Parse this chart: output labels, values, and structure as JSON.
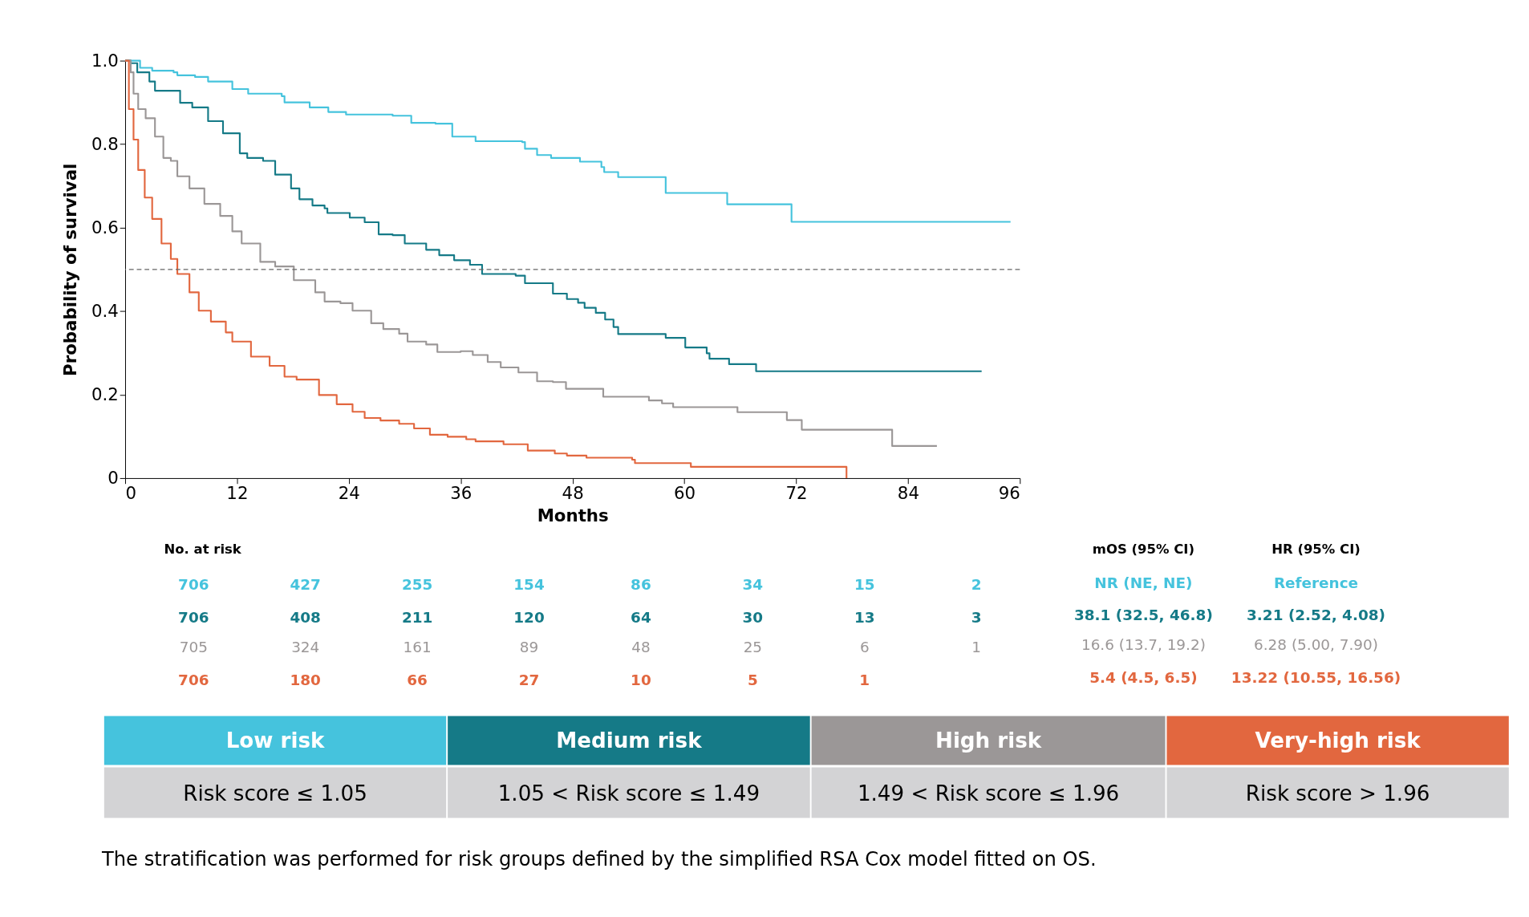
{
  "chart_data": {
    "type": "step",
    "xlabel": "Months",
    "ylabel": "Probability of survival",
    "xlim": [
      0,
      96
    ],
    "xticks": [
      0,
      12,
      24,
      36,
      48,
      60,
      72,
      84,
      96
    ],
    "ylim": [
      0,
      1
    ],
    "yticks": [
      0,
      0.2,
      0.4,
      0.6,
      0.8,
      {
        "value": 1,
        "label": "1.0"
      }
    ],
    "grid": false,
    "legend": "bottom",
    "marker": "none",
    "line_style": "solid",
    "ref_lines": [
      {
        "axis": "y",
        "value": 0.5,
        "color": "#666666",
        "line_style": "dashed"
      }
    ],
    "series": [
      {
        "name": "Low risk",
        "color": "#45c3dd",
        "x": [
          0,
          1.6,
          2.9,
          5.2,
          5.6,
          7.5,
          8.9,
          10.5,
          11.5,
          13.2,
          16.8,
          17.1,
          19.8,
          21.8,
          23.7,
          28.7,
          30.7,
          33.3,
          35.1,
          37.6,
          42.6,
          42.9,
          44.2,
          45.7,
          48.8,
          51.1,
          51.4,
          52.9,
          58.0,
          64.6,
          71.5,
          95.0
        ],
        "values": [
          1,
          0.983,
          0.976,
          0.972,
          0.965,
          0.961,
          0.95,
          0.95,
          0.932,
          0.921,
          0.915,
          0.9,
          0.888,
          0.877,
          0.871,
          0.868,
          0.851,
          0.849,
          0.818,
          0.807,
          0.805,
          0.789,
          0.774,
          0.767,
          0.758,
          0.745,
          0.733,
          0.721,
          0.683,
          0.656,
          0.614,
          0.614
        ]
      },
      {
        "name": "Medium risk",
        "color": "#157a87",
        "x": [
          0,
          0.6,
          1.3,
          2.6,
          3.2,
          5.9,
          7.2,
          8.9,
          10.5,
          12.3,
          13.1,
          14.8,
          16.1,
          17.8,
          18.7,
          20.1,
          21.4,
          21.7,
          24.1,
          25.7,
          27.2,
          28.7,
          30.0,
          32.3,
          33.7,
          35.3,
          37.0,
          38.3,
          41.9,
          42.9,
          45.9,
          47.4,
          48.6,
          49.3,
          50.5,
          51.5,
          52.4,
          52.9,
          58.0,
          60.1,
          62.4,
          62.7,
          64.8,
          67.7,
          91.9
        ],
        "values": [
          1,
          0.994,
          0.972,
          0.95,
          0.928,
          0.899,
          0.888,
          0.855,
          0.826,
          0.778,
          0.767,
          0.76,
          0.727,
          0.694,
          0.668,
          0.653,
          0.646,
          0.635,
          0.624,
          0.613,
          0.584,
          0.582,
          0.562,
          0.547,
          0.534,
          0.522,
          0.511,
          0.489,
          0.485,
          0.467,
          0.442,
          0.429,
          0.42,
          0.408,
          0.396,
          0.38,
          0.362,
          0.345,
          0.336,
          0.313,
          0.299,
          0.286,
          0.273,
          0.256,
          0.256
        ]
      },
      {
        "name": "High risk",
        "color": "#9b9797",
        "x": [
          0,
          0.6,
          0.9,
          1.4,
          2.2,
          3.2,
          4.1,
          4.9,
          5.6,
          6.9,
          8.5,
          10.2,
          11.5,
          12.5,
          14.5,
          16.1,
          18.1,
          20.4,
          21.4,
          23.1,
          24.4,
          26.4,
          27.7,
          29.4,
          30.3,
          32.3,
          33.5,
          36.0,
          37.3,
          38.9,
          40.3,
          42.2,
          44.2,
          45.9,
          47.3,
          51.3,
          56.2,
          57.6,
          58.8,
          65.7,
          71.0,
          72.6,
          82.3,
          87.1
        ],
        "values": [
          1,
          0.972,
          0.921,
          0.884,
          0.862,
          0.818,
          0.767,
          0.76,
          0.723,
          0.694,
          0.657,
          0.628,
          0.591,
          0.562,
          0.518,
          0.507,
          0.474,
          0.445,
          0.423,
          0.419,
          0.401,
          0.371,
          0.357,
          0.346,
          0.327,
          0.32,
          0.302,
          0.304,
          0.295,
          0.278,
          0.265,
          0.253,
          0.232,
          0.23,
          0.214,
          0.195,
          0.186,
          0.179,
          0.17,
          0.158,
          0.139,
          0.116,
          0.077,
          0.077
        ]
      },
      {
        "name": "Very-high risk",
        "color": "#e2673f",
        "x": [
          0,
          0.4,
          0.9,
          1.4,
          2.1,
          2.9,
          3.9,
          4.9,
          5.6,
          6.9,
          7.9,
          9.2,
          10.8,
          11.5,
          13.5,
          15.5,
          17.1,
          18.4,
          20.8,
          22.7,
          24.4,
          25.7,
          27.4,
          29.4,
          31.0,
          32.7,
          34.6,
          36.6,
          37.6,
          40.6,
          43.2,
          46.1,
          47.4,
          49.5,
          54.4,
          54.7,
          60.7,
          77.4,
          77.4
        ],
        "values": [
          1,
          0.884,
          0.811,
          0.738,
          0.672,
          0.621,
          0.562,
          0.525,
          0.489,
          0.445,
          0.401,
          0.375,
          0.349,
          0.327,
          0.291,
          0.269,
          0.243,
          0.236,
          0.199,
          0.177,
          0.159,
          0.144,
          0.138,
          0.13,
          0.119,
          0.104,
          0.099,
          0.093,
          0.088,
          0.081,
          0.066,
          0.059,
          0.054,
          0.049,
          0.044,
          0.036,
          0.027,
          0.027,
          0
        ]
      }
    ],
    "annotations": [
      "No. at risk",
      "mOS (95% CI)",
      "HR (95% CI)",
      "706",
      "427",
      "255",
      "154",
      "86",
      "34",
      "15",
      "2",
      "NR (NE, NE)",
      "Reference",
      "706",
      "408",
      "211",
      "120",
      "64",
      "30",
      "13",
      "3",
      "38.1 (32.5, 46.8)",
      "3.21 (2.52, 4.08)",
      "705",
      "324",
      "161",
      "89",
      "48",
      "25",
      "6",
      "1",
      "16.6 (13.7, 19.2)",
      "6.28 (5.00, 7.90)",
      "706",
      "180",
      "66",
      "27",
      "10",
      "5",
      "1",
      "5.4 (4.5, 6.5)",
      "13.22 (10.55, 16.56)",
      "Risk score ≤ 1.05",
      "1.05 < Risk score ≤  1.49",
      "1.49 < Risk score ≤ 1.96",
      "Risk score > 1.96",
      "The stratification was performed for risk groups defined by the simplified RSA Cox model fitted on OS."
    ]
  }
}
